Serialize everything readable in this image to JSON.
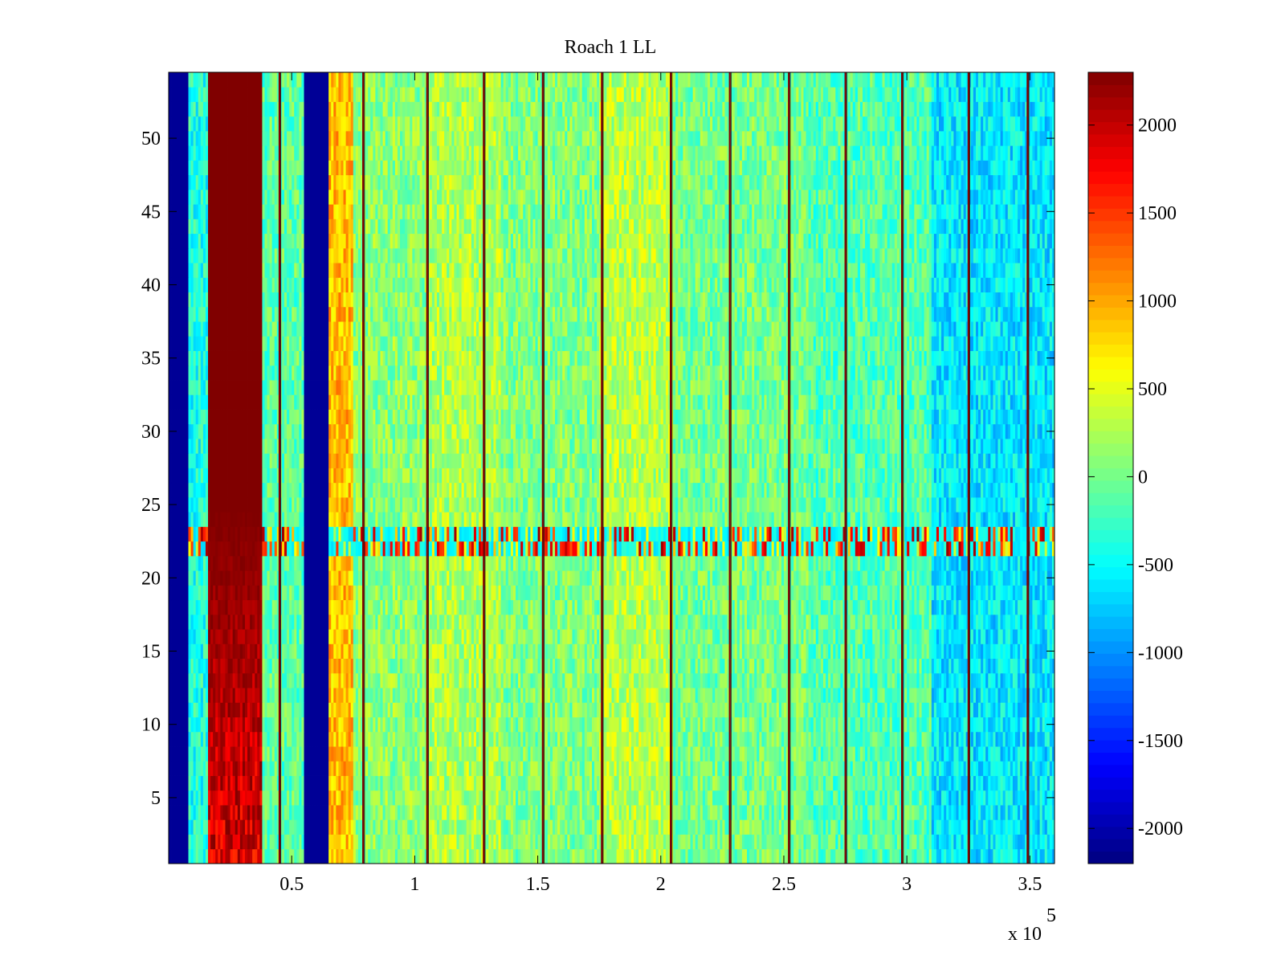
{
  "chart_data": {
    "type": "heatmap",
    "title": "Roach 1 LL",
    "xlabel": "",
    "ylabel": "",
    "x_multiplier_label": {
      "base": "x 10",
      "exponent": "5"
    },
    "xlim": [
      0,
      3.6
    ],
    "ylim": [
      0.5,
      54.5
    ],
    "x_ticks": [
      0.5,
      1,
      1.5,
      2,
      2.5,
      3,
      3.5
    ],
    "x_tick_labels": [
      "0.5",
      "1",
      "1.5",
      "2",
      "2.5",
      "3",
      "3.5"
    ],
    "y_ticks": [
      5,
      10,
      15,
      20,
      25,
      30,
      35,
      40,
      45,
      50
    ],
    "y_tick_labels": [
      "5",
      "10",
      "15",
      "20",
      "25",
      "30",
      "35",
      "40",
      "45",
      "50"
    ],
    "rows": 54,
    "colormap": "jet",
    "clim": [
      -2200,
      2300
    ],
    "colorbar_ticks": [
      2000,
      1500,
      1000,
      500,
      0,
      -500,
      -1000,
      -1500,
      -2000
    ],
    "colorbar_tick_labels": [
      "2000",
      "1500",
      "1000",
      "500",
      "0",
      "-500",
      "-1000",
      "-1500",
      "-2000"
    ],
    "background_level": -100,
    "bands": [
      {
        "x_start": 0.0,
        "x_end": 0.085,
        "value": -2100
      },
      {
        "x_start": 0.085,
        "x_end": 0.16,
        "value": -400
      },
      {
        "x_start": 0.16,
        "x_end": 0.38,
        "value": 2300
      },
      {
        "x_start": 0.38,
        "x_end": 0.55,
        "value": -100
      },
      {
        "x_start": 0.55,
        "x_end": 0.65,
        "value": -2100
      },
      {
        "x_start": 0.65,
        "x_end": 0.75,
        "value": 900
      },
      {
        "x_start": 0.75,
        "x_end": 1.05,
        "value": 100
      },
      {
        "x_start": 1.05,
        "x_end": 1.35,
        "value": 250
      },
      {
        "x_start": 1.35,
        "x_end": 1.75,
        "value": 50
      },
      {
        "x_start": 1.75,
        "x_end": 2.05,
        "value": 300
      },
      {
        "x_start": 2.05,
        "x_end": 2.6,
        "value": 0
      },
      {
        "x_start": 2.6,
        "x_end": 3.1,
        "value": -150
      },
      {
        "x_start": 3.1,
        "x_end": 3.6,
        "value": -600
      }
    ],
    "anomaly_rows": [
      22,
      23
    ],
    "vertical_lines": [
      {
        "x": 0.45,
        "value": 2300
      },
      {
        "x": 0.79,
        "value": 2300
      },
      {
        "x": 1.05,
        "value": 2300
      },
      {
        "x": 1.28,
        "value": 2300
      },
      {
        "x": 1.52,
        "value": 2300
      },
      {
        "x": 1.76,
        "value": 2300
      },
      {
        "x": 2.04,
        "value": 2300
      },
      {
        "x": 2.28,
        "value": 2300
      },
      {
        "x": 2.52,
        "value": 2300
      },
      {
        "x": 2.75,
        "value": 2300
      },
      {
        "x": 2.98,
        "value": 2300
      },
      {
        "x": 3.25,
        "value": 2300
      },
      {
        "x": 3.49,
        "value": 2300
      }
    ]
  }
}
